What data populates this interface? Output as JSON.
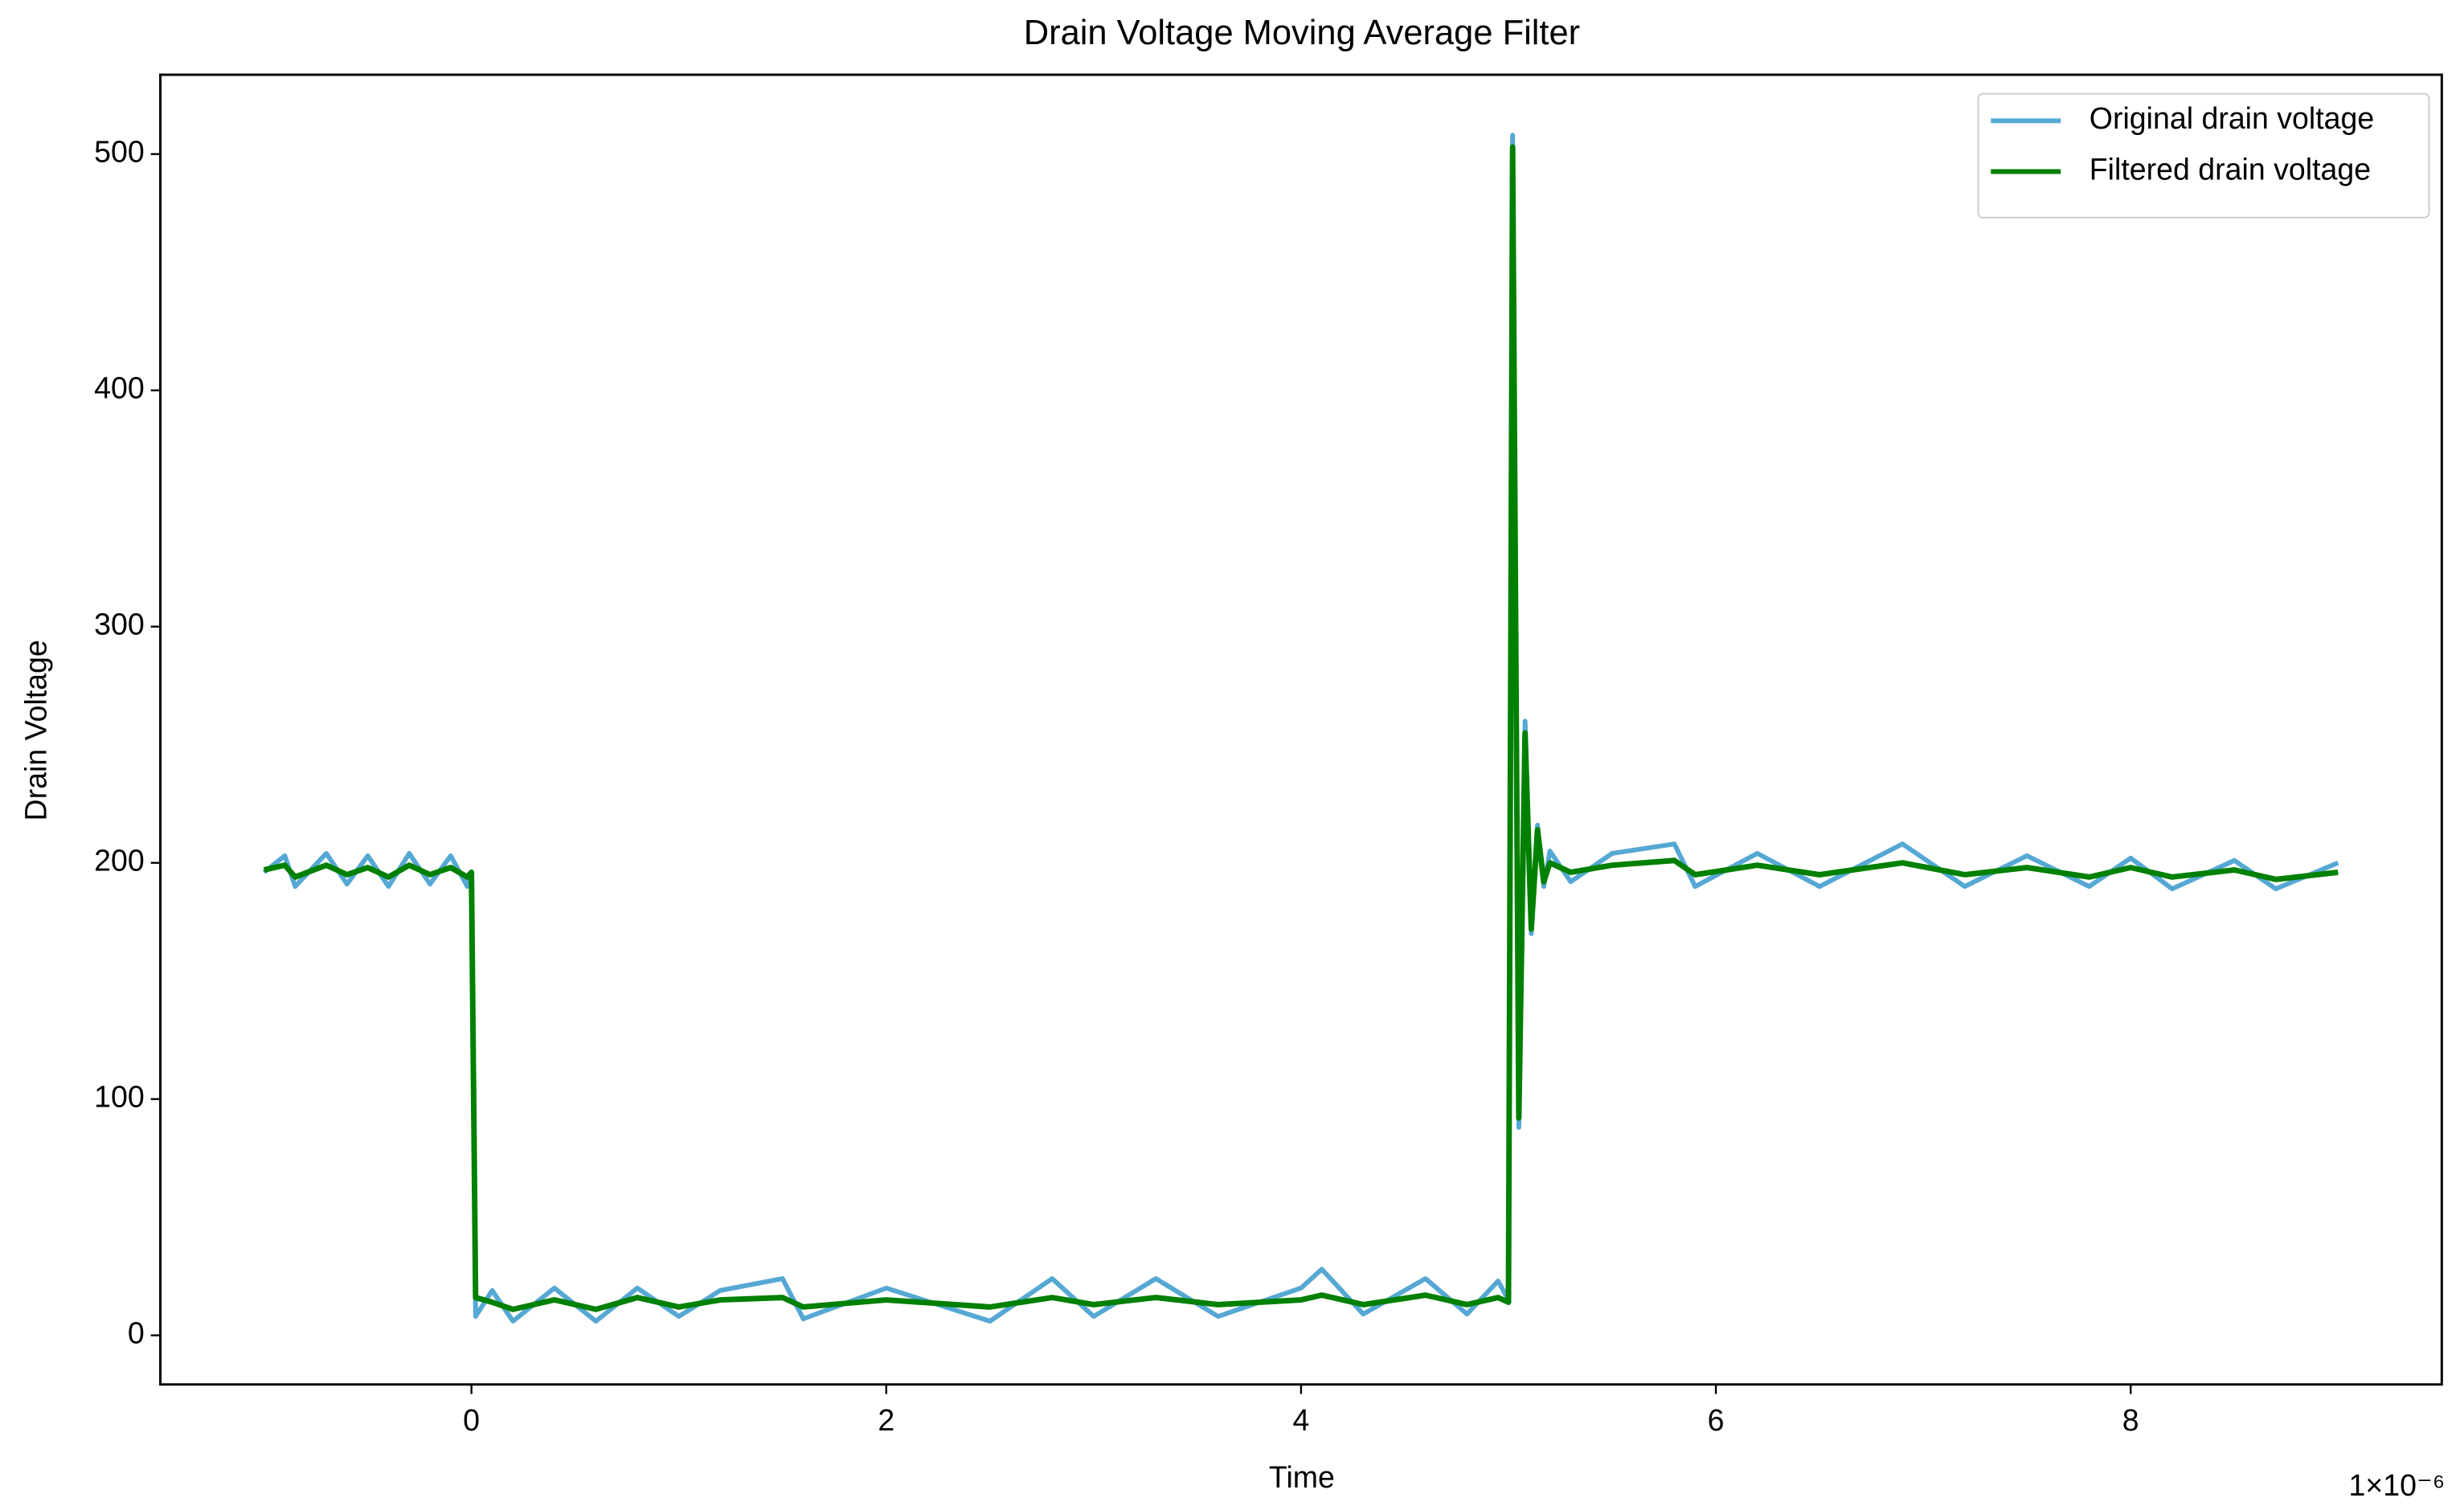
{
  "chart_data": {
    "type": "line",
    "title": "Drain Voltage Moving Average Filter",
    "xlabel": "Time",
    "ylabel": "Drain Voltage",
    "x_offset_label": "1×10⁻⁶",
    "x": [
      -1e-06,
      -9e-07,
      -8.5e-07,
      -7e-07,
      -6e-07,
      -5e-07,
      -4e-07,
      -3e-07,
      -2e-07,
      -1e-07,
      -2e-08,
      0,
      2e-08,
      1e-07,
      2e-07,
      4e-07,
      6e-07,
      8e-07,
      1e-06,
      1.2e-06,
      1.5e-06,
      1.6e-06,
      2e-06,
      2.5e-06,
      2.8e-06,
      3e-06,
      3.3e-06,
      3.6e-06,
      4e-06,
      4.1e-06,
      4.3e-06,
      4.6e-06,
      4.8e-06,
      4.95e-06,
      5e-06,
      5.02e-06,
      5.05e-06,
      5.08e-06,
      5.11e-06,
      5.14e-06,
      5.17e-06,
      5.2e-06,
      5.3e-06,
      5.5e-06,
      5.8e-06,
      5.9e-06,
      6.2e-06,
      6.5e-06,
      6.9e-06,
      7.2e-06,
      7.5e-06,
      7.8e-06,
      8e-06,
      8.2e-06,
      8.5e-06,
      8.7e-06,
      9e-06
    ],
    "series": [
      {
        "name": "Original drain voltage",
        "color": "#56a8d4",
        "values": [
          196,
          203,
          190,
          204,
          191,
          203,
          190,
          204,
          191,
          203,
          190,
          196,
          8,
          19,
          6,
          20,
          6,
          20,
          8,
          19,
          24,
          7,
          20,
          6,
          24,
          8,
          24,
          8,
          20,
          28,
          9,
          24,
          9,
          23,
          15,
          508,
          88,
          260,
          170,
          216,
          190,
          205,
          192,
          204,
          208,
          190,
          204,
          190,
          208,
          190,
          203,
          190,
          202,
          189,
          201,
          189,
          200
        ]
      },
      {
        "name": "Filtered drain voltage",
        "color": "#008000",
        "values": [
          197,
          199,
          194,
          199,
          195,
          198,
          194,
          199,
          195,
          198,
          194,
          196,
          16,
          14,
          11,
          15,
          11,
          16,
          12,
          15,
          16,
          12,
          15,
          12,
          16,
          13,
          16,
          13,
          15,
          17,
          13,
          17,
          13,
          16,
          14,
          503,
          92,
          255,
          172,
          214,
          192,
          200,
          196,
          199,
          201,
          195,
          199,
          195,
          200,
          195,
          198,
          194,
          198,
          194,
          197,
          193,
          196
        ]
      }
    ],
    "xlim": [
      -1.5e-06,
      9.5e-06
    ],
    "xticks": [
      {
        "value": 0,
        "label": "0"
      },
      {
        "value": 2e-06,
        "label": "2"
      },
      {
        "value": 4e-06,
        "label": "4"
      },
      {
        "value": 6e-06,
        "label": "6"
      },
      {
        "value": 8e-06,
        "label": "8"
      }
    ],
    "ylim": [
      -20.8,
      533.6
    ],
    "yticks": [
      0,
      100,
      200,
      300,
      400,
      500
    ],
    "legend": "upper right"
  }
}
